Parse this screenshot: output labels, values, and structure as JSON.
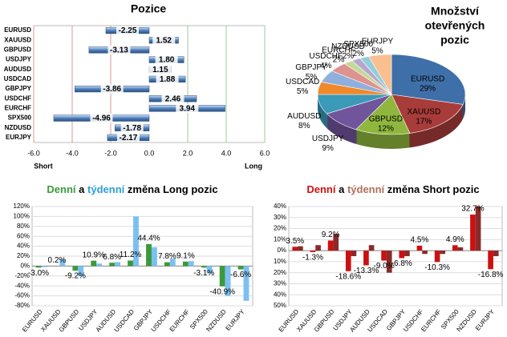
{
  "chart_data": [
    {
      "type": "hbar",
      "title": "Pozice",
      "categories": [
        "EURUSD",
        "XAUUSD",
        "GBPUSD",
        "USDJPY",
        "AUDUSD",
        "USDCAD",
        "GBPJPY",
        "USDCHF",
        "EURCHF",
        "SPX500",
        "NZDUSD",
        "EURJPY"
      ],
      "values": [
        -2.25,
        1.52,
        -3.13,
        1.8,
        1.15,
        1.88,
        -3.86,
        2.46,
        3.94,
        -4.96,
        -1.78,
        -2.17
      ],
      "value_labels": [
        "-2.25",
        "1.52",
        "-3.13",
        "1.80",
        "1.15",
        "1.88",
        "-3.86",
        "2.46",
        "3.94",
        "-4.96",
        "-1.78",
        "-2.17"
      ],
      "color": "#4f81bd",
      "xlim": [
        -6,
        6
      ],
      "xticks": [
        {
          "value": -6,
          "label": "-6.0"
        },
        {
          "value": -4,
          "label": "-4.0"
        },
        {
          "value": -2,
          "label": "-2.0"
        },
        {
          "value": 0,
          "label": "0.0"
        },
        {
          "value": 2,
          "label": "2.0"
        },
        {
          "value": 4,
          "label": "4.0"
        },
        {
          "value": 6,
          "label": "6.0"
        }
      ],
      "xlabel_left": "Short",
      "xlabel_right": "Long",
      "negative_color": "#d99a9a",
      "positive_color": "#9cc99c"
    },
    {
      "type": "pie",
      "title": [
        "Množství",
        "otevřených",
        "pozic"
      ],
      "categories": [
        "EURUSD",
        "XAUUSD",
        "GBPUSD",
        "USDJPY",
        "AUDUSD",
        "USDCAD",
        "GBPJPY",
        "USDCHF",
        "EURCHF",
        "NZDUSD",
        "SPX500",
        "EURJPY"
      ],
      "values": [
        29,
        17,
        12,
        9,
        8,
        5,
        5,
        4,
        2,
        2,
        2,
        5
      ],
      "value_labels": [
        "29%",
        "17%",
        "12%",
        "9%",
        "8%",
        "5%",
        "5%",
        "4%",
        "2%",
        "2%",
        "2%",
        "5%"
      ],
      "colors": [
        "#3f6fa8",
        "#a83c3a",
        "#8fb73e",
        "#71559c",
        "#3a9ab8",
        "#f0892a",
        "#8fb0dc",
        "#de9290",
        "#c3d99a",
        "#b4a6cc",
        "#92cddc",
        "#f9bf8f"
      ]
    },
    {
      "type": "bar",
      "title": [
        {
          "text": "Denní",
          "color": "#3a9a3a"
        },
        {
          "text": "a",
          "color": "#000000"
        },
        {
          "text": "týdenní",
          "color": "#2aa0d8"
        },
        {
          "text": "změna Long pozic",
          "color": "#000000"
        }
      ],
      "categories": [
        "EURUSD",
        "XAUUSD",
        "GBPUSD",
        "USDJPY",
        "AUDUSD",
        "USDCAD",
        "GBPJPY",
        "USDCHF",
        "EURCHF",
        "SPX500",
        "NZDUSD",
        "EURJPY"
      ],
      "series": [
        {
          "color": "#3a9a3a",
          "values": [
            -3.0,
            0.2,
            -9.2,
            10.9,
            6.8,
            11.2,
            44.4,
            7.8,
            9.1,
            -3.1,
            -40.9,
            -6.6
          ],
          "value_labels": [
            "-3.0%",
            "0.2%",
            "-9.2%",
            "10.9%",
            "6.8%",
            "11.2%",
            "44.4%",
            "7.8%",
            "9.1%",
            "-3.1%",
            "-40.9%",
            "-6.6%"
          ]
        },
        {
          "color": "#7cc0f2",
          "values": [
            -2,
            14,
            -20,
            5,
            8,
            100,
            38,
            15,
            10,
            -15,
            -60,
            -70
          ]
        }
      ],
      "ylim": [
        -80,
        120
      ],
      "yticks": [
        {
          "value": -80,
          "label": "-80%"
        },
        {
          "value": -60,
          "label": "-60%"
        },
        {
          "value": -40,
          "label": "-40%"
        },
        {
          "value": -20,
          "label": "-20%"
        },
        {
          "value": 0,
          "label": "0%"
        },
        {
          "value": 20,
          "label": "20%"
        },
        {
          "value": 40,
          "label": "40%"
        },
        {
          "value": 60,
          "label": "60%"
        },
        {
          "value": 80,
          "label": "80%"
        },
        {
          "value": 100,
          "label": "100%"
        },
        {
          "value": 120,
          "label": "120%"
        }
      ],
      "grid": true
    },
    {
      "type": "bar",
      "title": [
        {
          "text": "Denní",
          "color": "#d01010"
        },
        {
          "text": "a",
          "color": "#000000"
        },
        {
          "text": "týdenní",
          "color": "#b0705a"
        },
        {
          "text": "změna Short pozic",
          "color": "#000000"
        }
      ],
      "categories": [
        "EURUSD",
        "XAUUSD",
        "GBPUSD",
        "USDJPY",
        "AUDUSD",
        "USDCAD",
        "GBPJPY",
        "USDCHF",
        "EURCHF",
        "SPX500",
        "NZDUSD",
        "EURJPY"
      ],
      "series": [
        {
          "color": "#cc1010",
          "values": [
            3.5,
            -1.3,
            9.2,
            -18.6,
            -13.3,
            -9.0,
            -6.8,
            4.5,
            -10.3,
            4.9,
            32.7,
            -16.8
          ],
          "value_labels": [
            "3.5%",
            "-1.3%",
            "9.2%",
            "-18.6%",
            "-13.3%",
            "-9.0%",
            "-6.8%",
            "4.5%",
            "-10.3%",
            "4.9%",
            "32.7%",
            "-16.8%"
          ]
        },
        {
          "color": "#8a2a2a",
          "values": [
            4,
            5,
            15,
            -5,
            5,
            -20,
            -5,
            -3,
            -3,
            3,
            40,
            -5
          ]
        }
      ],
      "ylim": [
        -50,
        40
      ],
      "yticks": [
        {
          "value": 40,
          "label": "40%"
        },
        {
          "value": 30,
          "label": "30%"
        },
        {
          "value": 20,
          "label": "20%"
        },
        {
          "value": 10,
          "label": "10%"
        },
        {
          "value": 0,
          "label": "0%"
        },
        {
          "value": -10,
          "label": "10%"
        },
        {
          "value": -20,
          "label": "20%"
        },
        {
          "value": -30,
          "label": "30%"
        },
        {
          "value": -40,
          "label": "40%"
        },
        {
          "value": -50,
          "label": "50%"
        }
      ],
      "grid": true
    }
  ]
}
